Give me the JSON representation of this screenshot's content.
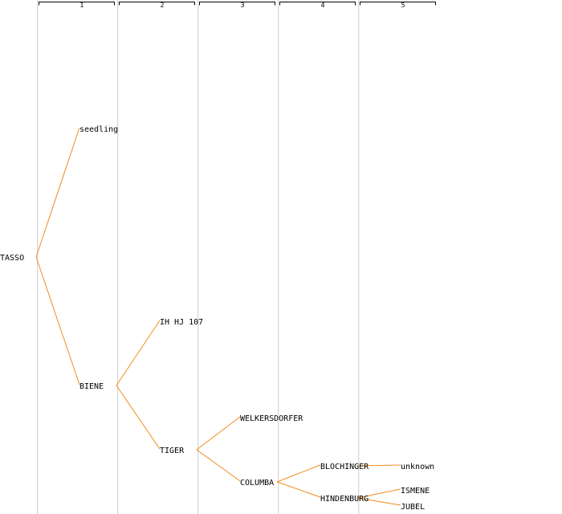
{
  "generations": [
    "1",
    "2",
    "3",
    "4",
    "5"
  ],
  "edge_color": "#f08c1e",
  "tree": {
    "name": "TASSO",
    "children": [
      {
        "name": "seedling"
      },
      {
        "name": "BIENE",
        "children": [
          {
            "name": "IH HJ 107"
          },
          {
            "name": "TIGER",
            "children": [
              {
                "name": "WELKERSDORFER"
              },
              {
                "name": "COLUMBA",
                "children": [
                  {
                    "name": "BLOCHINGER",
                    "children": [
                      {
                        "name": "unknown"
                      }
                    ]
                  },
                  {
                    "name": "HINDENBURG",
                    "children": [
                      {
                        "name": "ISMENE"
                      },
                      {
                        "name": "JUBEL"
                      }
                    ]
                  }
                ]
              }
            ]
          }
        ]
      }
    ]
  }
}
